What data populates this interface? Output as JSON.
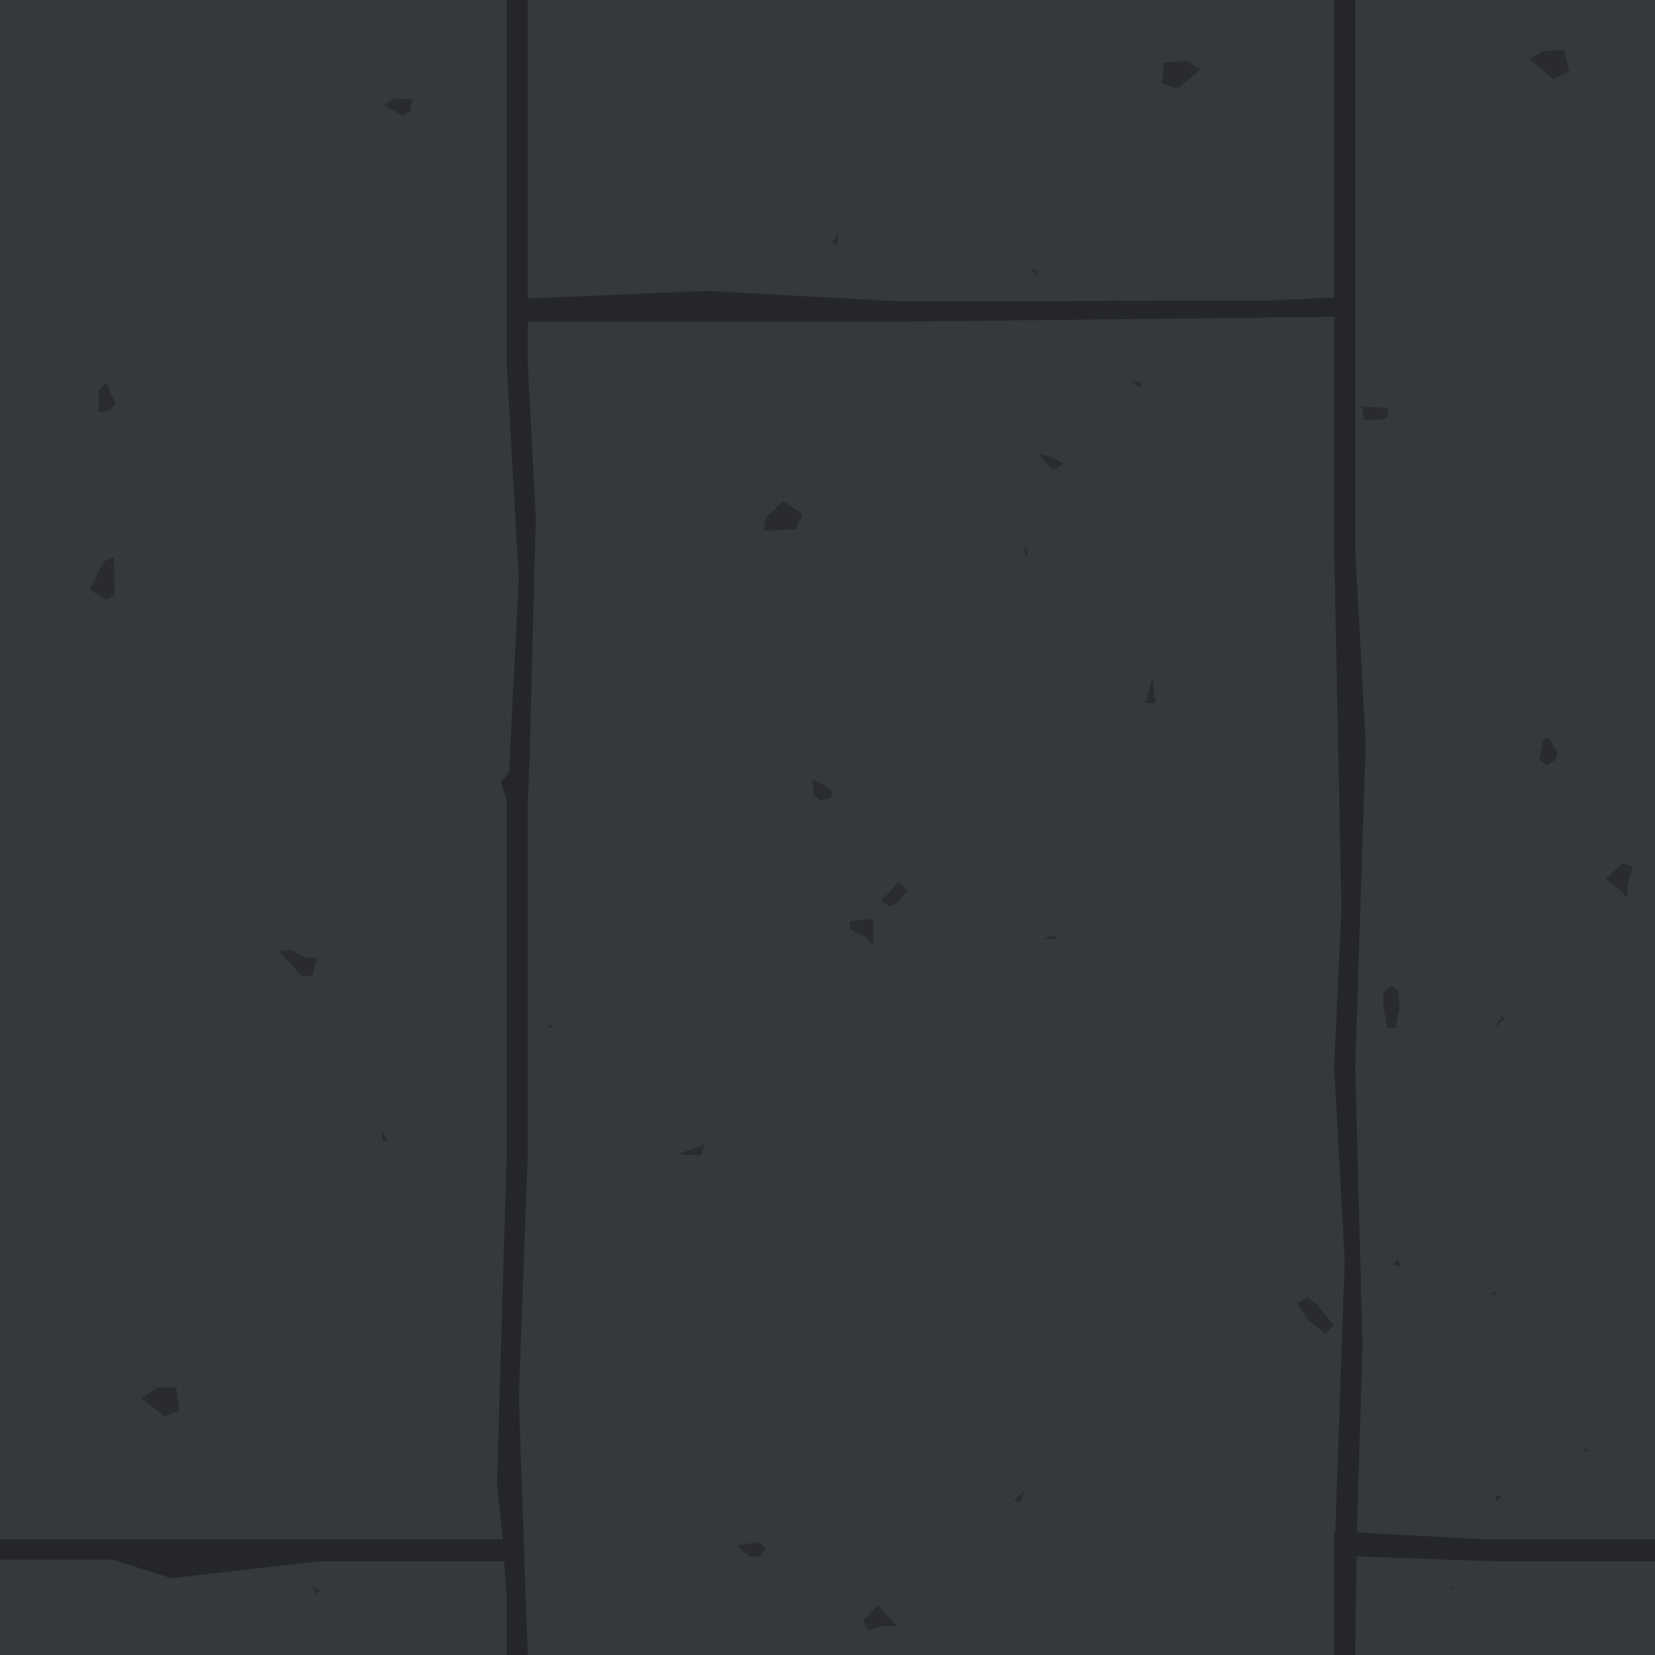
{
  "texture": {
    "kind": "stone-floor-tile",
    "colors": {
      "stone": "#35383d",
      "mortar": "#25262a",
      "speck": "#292b2e"
    },
    "stone_count": 6,
    "speck_count": 40
  }
}
